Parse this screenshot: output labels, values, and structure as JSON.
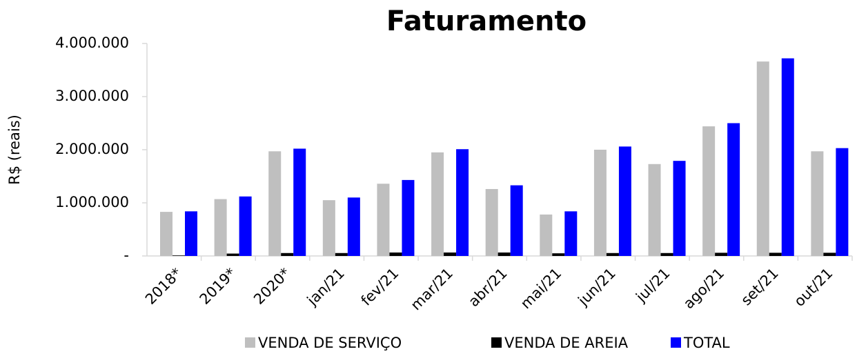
{
  "chart_data": {
    "type": "bar",
    "title": "Faturamento",
    "y_label": "R$ (reais)",
    "categories": [
      "2018*",
      "2019*",
      "2020*",
      "jan/21",
      "fev/21",
      "mar/21",
      "abr/21",
      "mai/21",
      "jun/21",
      "jul/21",
      "ago/21",
      "set/21",
      "out/21"
    ],
    "series": [
      {
        "name": "VENDA DE SERVIÇO",
        "color": "#bfbfbf",
        "values": [
          830000,
          1070000,
          1970000,
          1050000,
          1360000,
          1950000,
          1260000,
          780000,
          2000000,
          1730000,
          2440000,
          3660000,
          1970000
        ]
      },
      {
        "name": "VENDA DE AREIA",
        "color": "#000000",
        "values": [
          10000,
          45000,
          55000,
          55000,
          65000,
          65000,
          65000,
          50000,
          55000,
          55000,
          60000,
          60000,
          60000
        ]
      },
      {
        "name": "TOTAL",
        "color": "#0000ff",
        "values": [
          840000,
          1120000,
          2020000,
          1100000,
          1430000,
          2010000,
          1330000,
          840000,
          2060000,
          1790000,
          2500000,
          3720000,
          2030000
        ]
      }
    ],
    "ylim": [
      0,
      4000000
    ],
    "yticks": [
      {
        "value": 0,
        "label": "-"
      },
      {
        "value": 1000000,
        "label": "1.000.000"
      },
      {
        "value": 2000000,
        "label": "2.000.000"
      },
      {
        "value": 3000000,
        "label": "3.000.000"
      },
      {
        "value": 4000000,
        "label": "4.000.000"
      }
    ],
    "grid": false,
    "legend": "bottom"
  }
}
